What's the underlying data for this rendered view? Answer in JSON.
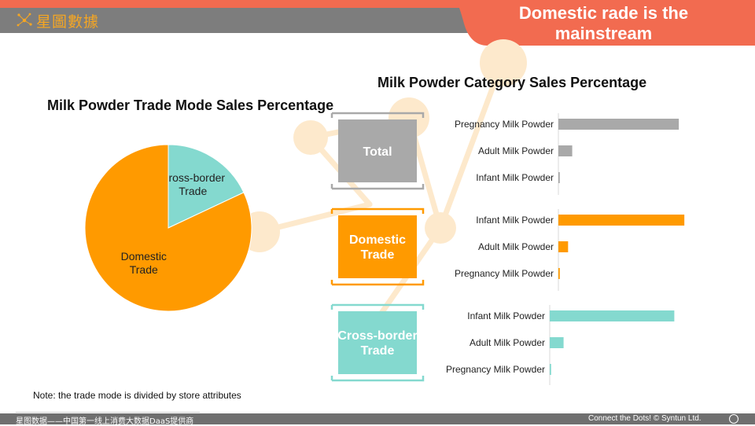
{
  "brand": {
    "logo_text": "星圖數據",
    "logo_color": "#f5a623"
  },
  "header": {
    "headline": "Domestic rade is the mainstream",
    "accent": "#f26b50"
  },
  "footer": {
    "left_text": "星图数据——中国第一线上消费大数据DaaS提供商",
    "right_text": "Connect the Dots! © Syntun Ltd."
  },
  "note": "Note: the trade mode is divided by store attributes",
  "chart_data": [
    {
      "type": "pie",
      "title": "Milk Powder Trade Mode Sales Percentage",
      "slices": [
        {
          "label": "Cross-border Trade",
          "label_lines": [
            "Cross-border",
            "Trade"
          ],
          "value": 18,
          "color": "#84d9cf"
        },
        {
          "label": "Domestic Trade",
          "label_lines": [
            "Domestic",
            "Trade"
          ],
          "value": 82,
          "color": "#ff9a00"
        }
      ],
      "start": "12 o'clock, clockwise"
    },
    {
      "type": "bar",
      "orientation": "horizontal",
      "title": "Milk Powder Category Sales Percentage",
      "xlim": [
        0,
        100
      ],
      "groups": [
        {
          "name": "Total",
          "color": "#a9a9a9",
          "categories": [
            "Pregnancy Milk Powder",
            "Adult Milk Powder",
            "Infant Milk Powder"
          ],
          "values": [
            87,
            10,
            1
          ]
        },
        {
          "name_lines": [
            "Domestic",
            "Trade"
          ],
          "color": "#ff9a00",
          "categories": [
            "Infant Milk Powder",
            "Adult Milk Powder",
            "Pregnancy Milk Powder"
          ],
          "values": [
            91,
            7,
            1
          ]
        },
        {
          "name_lines": [
            "Cross-border",
            "Trade"
          ],
          "color": "#84d9cf",
          "categories": [
            "Infant Milk Powder",
            "Adult Milk Powder",
            "Pregnancy Milk Powder"
          ],
          "values": [
            90,
            10,
            1
          ]
        }
      ]
    }
  ]
}
